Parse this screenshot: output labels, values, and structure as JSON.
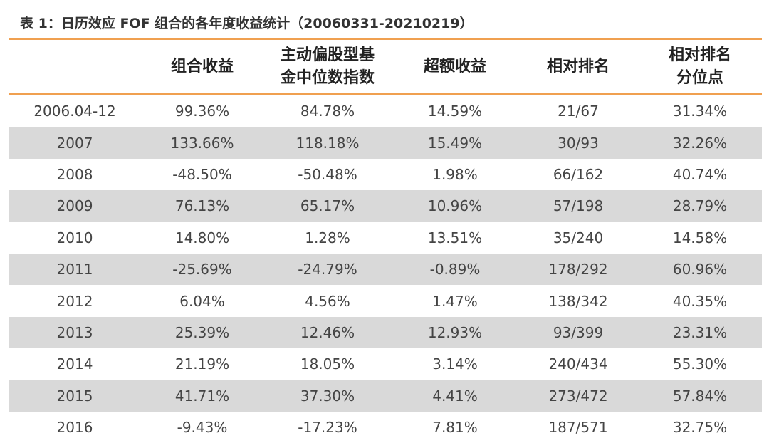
{
  "title": "表 1：日历效应 FOF 组合的各年度收益统计（20060331-20210219）",
  "colors": {
    "accent_rule": "#F0A050",
    "stripe": "#D9D9D9"
  },
  "header": {
    "col0": "",
    "col1": "组合收益",
    "col2_line1": "主动偏股型基",
    "col2_line2": "金中位数指数",
    "col3": "超额收益",
    "col4": "相对排名",
    "col5_line1": "相对排名",
    "col5_line2": "分位点"
  },
  "rows": [
    [
      "2006.04-12",
      "99.36%",
      "84.78%",
      "14.59%",
      "21/67",
      "31.34%"
    ],
    [
      "2007",
      "133.66%",
      "118.18%",
      "15.49%",
      "30/93",
      "32.26%"
    ],
    [
      "2008",
      "-48.50%",
      "-50.48%",
      "1.98%",
      "66/162",
      "40.74%"
    ],
    [
      "2009",
      "76.13%",
      "65.17%",
      "10.96%",
      "57/198",
      "28.79%"
    ],
    [
      "2010",
      "14.80%",
      "1.28%",
      "13.51%",
      "35/240",
      "14.58%"
    ],
    [
      "2011",
      "-25.69%",
      "-24.79%",
      "-0.89%",
      "178/292",
      "60.96%"
    ],
    [
      "2012",
      "6.04%",
      "4.56%",
      "1.47%",
      "138/342",
      "40.35%"
    ],
    [
      "2013",
      "25.39%",
      "12.46%",
      "12.93%",
      "93/399",
      "23.31%"
    ],
    [
      "2014",
      "21.19%",
      "18.05%",
      "3.14%",
      "240/434",
      "55.30%"
    ],
    [
      "2015",
      "41.71%",
      "37.30%",
      "4.41%",
      "273/472",
      "57.84%"
    ],
    [
      "2016",
      "-9.43%",
      "-17.23%",
      "7.81%",
      "187/571",
      "32.75%"
    ]
  ]
}
